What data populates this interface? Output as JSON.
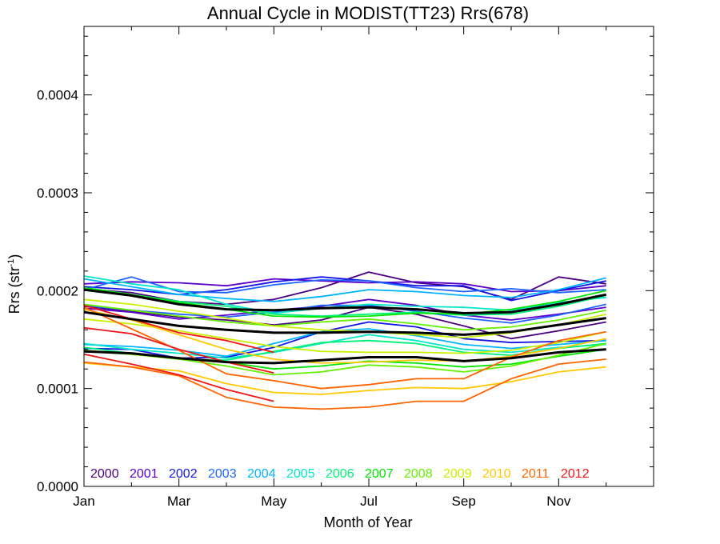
{
  "chart_data": {
    "type": "line",
    "title": "Annual Cycle in MODIST(TT23) Rrs(678)",
    "xlabel": "Month of Year",
    "ylabel_main": "Rrs (str",
    "ylabel_sup": "-1",
    "ylabel_close": ")",
    "xlim": [
      1,
      13
    ],
    "ylim": [
      0,
      0.00047
    ],
    "x_ticks": [
      {
        "value": 1,
        "label": "Jan"
      },
      {
        "value": 3,
        "label": "Mar"
      },
      {
        "value": 5,
        "label": "May"
      },
      {
        "value": 7,
        "label": "Jul"
      },
      {
        "value": 9,
        "label": "Sep"
      },
      {
        "value": 11,
        "label": "Nov"
      }
    ],
    "y_ticks": [
      {
        "value": 0,
        "label": "0.0000"
      },
      {
        "value": 0.0001,
        "label": "0.0001"
      },
      {
        "value": 0.0002,
        "label": "0.0002"
      },
      {
        "value": 0.0003,
        "label": "0.0003"
      },
      {
        "value": 0.0004,
        "label": "0.0004"
      }
    ],
    "months": [
      1,
      2,
      3,
      4,
      5,
      6,
      7,
      8,
      9,
      10,
      11,
      12
    ],
    "legend": [
      {
        "label": "2000",
        "color": "#4b0082"
      },
      {
        "label": "2001",
        "color": "#5a00c8"
      },
      {
        "label": "2002",
        "color": "#1414e6"
      },
      {
        "label": "2003",
        "color": "#1e64ff"
      },
      {
        "label": "2004",
        "color": "#00b4ff"
      },
      {
        "label": "2005",
        "color": "#00e6c8"
      },
      {
        "label": "2006",
        "color": "#00f078"
      },
      {
        "label": "2007",
        "color": "#00e600"
      },
      {
        "label": "2008",
        "color": "#64f000"
      },
      {
        "label": "2009",
        "color": "#c8f000"
      },
      {
        "label": "2010",
        "color": "#ffc800"
      },
      {
        "label": "2011",
        "color": "#ff6400"
      },
      {
        "label": "2012",
        "color": "#f01414"
      }
    ],
    "series": [
      {
        "year": "2000",
        "color": "#4b0082",
        "values": [
          0.000202,
          0.000198,
          0.000189,
          0.000186,
          0.000191,
          0.000203,
          0.000219,
          0.000208,
          0.000204,
          0.000191,
          0.000214,
          0.000207
        ]
      },
      {
        "year": "2000",
        "color": "#4b0082",
        "values": [
          0.000184,
          0.000179,
          0.000173,
          0.00017,
          0.000165,
          0.00017,
          0.000183,
          0.000176,
          0.000164,
          0.000151,
          0.000159,
          0.000168
        ]
      },
      {
        "year": "2001",
        "color": "#5a00c8",
        "values": [
          0.000207,
          0.000209,
          0.000208,
          0.000205,
          0.000212,
          0.00021,
          0.000208,
          0.000209,
          0.000207,
          0.000199,
          0.0002,
          0.000205
        ]
      },
      {
        "year": "2001",
        "color": "#5a00c8",
        "values": [
          0.000182,
          0.000178,
          0.000171,
          0.000175,
          0.00018,
          0.000184,
          0.000191,
          0.000185,
          0.000175,
          0.00017,
          0.000176,
          0.000183
        ]
      },
      {
        "year": "2002",
        "color": "#1414e6",
        "values": [
          0.000204,
          0.000201,
          0.000196,
          0.000201,
          0.000209,
          0.000214,
          0.00021,
          0.000205,
          0.000205,
          0.00019,
          0.0002,
          0.00021
        ]
      },
      {
        "year": "2002",
        "color": "#1414e6",
        "values": [
          0.000141,
          0.00014,
          0.000131,
          0.000132,
          0.000142,
          0.000158,
          0.000168,
          0.000163,
          0.000151,
          0.000147,
          0.000148,
          0.000149
        ]
      },
      {
        "year": "2003",
        "color": "#1e64ff",
        "values": [
          0.000201,
          0.000214,
          0.000199,
          0.000198,
          0.000206,
          0.000211,
          0.00021,
          0.000203,
          0.000199,
          0.000202,
          0.000198,
          0.000201
        ]
      },
      {
        "year": "2003",
        "color": "#1e64ff",
        "values": [
          0.000185,
          0.00018,
          0.000176,
          0.000173,
          0.000178,
          0.000185,
          0.000185,
          0.000179,
          0.000172,
          0.000167,
          0.000175,
          0.000186
        ]
      },
      {
        "year": "2004",
        "color": "#00b4ff",
        "values": [
          0.000212,
          0.000204,
          0.000196,
          0.000192,
          0.000189,
          0.000194,
          0.000201,
          0.000199,
          0.000195,
          0.000193,
          0.000201,
          0.000213
        ]
      },
      {
        "year": "2004",
        "color": "#00b4ff",
        "values": [
          0.000145,
          0.000143,
          0.000139,
          0.000133,
          0.000146,
          0.000158,
          0.000161,
          0.000154,
          0.000145,
          0.000141,
          0.000145,
          0.000149
        ]
      },
      {
        "year": "2005",
        "color": "#00e6c8",
        "values": [
          0.000215,
          0.000207,
          0.000201,
          0.000186,
          0.000177,
          0.000182,
          0.000186,
          0.000184,
          0.000183,
          0.00018,
          0.000188,
          0.000193
        ]
      },
      {
        "year": "2005",
        "color": "#00e6c8",
        "values": [
          0.000146,
          0.00014,
          0.000136,
          0.000131,
          0.000137,
          0.000146,
          0.000155,
          0.000149,
          0.00014,
          0.000137,
          0.000142,
          0.000145
        ]
      },
      {
        "year": "2006",
        "color": "#00f078",
        "values": [
          0.000203,
          0.000196,
          0.000189,
          0.000184,
          0.000176,
          0.000174,
          0.000176,
          0.000178,
          0.000175,
          0.000176,
          0.000184,
          0.000195
        ]
      },
      {
        "year": "2006",
        "color": "#00f078",
        "values": [
          0.000142,
          0.000136,
          0.00013,
          0.000129,
          0.000138,
          0.000147,
          0.000149,
          0.000146,
          0.000137,
          0.000134,
          0.000141,
          0.000146
        ]
      },
      {
        "year": "2007",
        "color": "#00e600",
        "values": [
          0.000203,
          0.000196,
          0.000188,
          0.000181,
          0.000174,
          0.000173,
          0.000174,
          0.000177,
          0.000176,
          0.000181,
          0.000189,
          0.0002
        ]
      },
      {
        "year": "2007",
        "color": "#00e600",
        "values": [
          0.000139,
          0.000135,
          0.000131,
          0.000127,
          0.00012,
          0.000123,
          0.000128,
          0.000126,
          0.000122,
          0.000125,
          0.000133,
          0.00014
        ]
      },
      {
        "year": "2008",
        "color": "#64f000",
        "values": [
          0.000186,
          0.00018,
          0.000174,
          0.000168,
          0.000164,
          0.000168,
          0.000171,
          0.000166,
          0.00016,
          0.000163,
          0.00017,
          0.00018
        ]
      },
      {
        "year": "2008",
        "color": "#64f000",
        "values": [
          0.000138,
          0.000135,
          0.00013,
          0.000123,
          0.000114,
          0.000117,
          0.000124,
          0.000122,
          0.000117,
          0.000123,
          0.000134,
          0.000146
        ]
      },
      {
        "year": "2009",
        "color": "#c8f000",
        "values": [
          0.000191,
          0.000186,
          0.000179,
          0.000172,
          0.000164,
          0.00016,
          0.000158,
          0.000155,
          0.000152,
          0.000157,
          0.000165,
          0.000176
        ]
      },
      {
        "year": "2009",
        "color": "#c8f000",
        "values": [
          0.000171,
          0.000166,
          0.000159,
          0.000151,
          0.000143,
          0.000138,
          0.000137,
          0.000137,
          0.000136,
          0.000139,
          0.000147,
          0.000158
        ]
      },
      {
        "year": "2010",
        "color": "#ffc800",
        "values": [
          0.000126,
          0.000122,
          0.000118,
          0.000105,
          9.6e-05,
          9.4e-05,
          9.8e-05,
          0.000101,
          0.0001,
          0.000107,
          0.000117,
          0.000122
        ]
      },
      {
        "year": "2010",
        "color": "#ffc800",
        "values": [
          0.000181,
          0.00017,
          0.000155,
          0.00014,
          0.00013,
          0.000126,
          0.000127,
          0.000129,
          0.000128,
          0.000133,
          0.000141,
          0.000151
        ]
      },
      {
        "year": "2011",
        "color": "#ff6400",
        "values": [
          0.000127,
          0.000122,
          0.000113,
          9.1e-05,
          8.1e-05,
          7.9e-05,
          8.1e-05,
          8.7e-05,
          8.7e-05,
          0.00011,
          0.000125,
          0.00013
        ]
      },
      {
        "year": "2011",
        "color": "#ff6400",
        "values": [
          0.000183,
          0.000161,
          0.000139,
          0.000115,
          0.000108,
          0.0001,
          0.000104,
          0.00011,
          0.00011,
          0.000132,
          0.000149,
          0.000158
        ]
      },
      {
        "year": "2012",
        "color": "#f01414",
        "values": [
          0.000135,
          0.000125,
          0.000114,
          9.9e-05,
          8.7e-05
        ]
      },
      {
        "year": "2012",
        "color": "#f01414",
        "values": [
          0.000162,
          0.000156,
          0.00014,
          0.000127,
          0.000116
        ]
      },
      {
        "year": "2012",
        "color": "#f01414",
        "values": [
          0.000185,
          0.000171,
          0.000157,
          0.000149,
          0.000137
        ]
      },
      {
        "year": "mean",
        "color": "#000000",
        "values": [
          0.000201,
          0.000195,
          0.000186,
          0.000181,
          0.00018,
          0.000182,
          0.000183,
          0.000181,
          0.000177,
          0.000178,
          0.000186,
          0.000196
        ]
      },
      {
        "year": "mean",
        "color": "#000000",
        "values": [
          0.000178,
          0.000171,
          0.000164,
          0.00016,
          0.000157,
          0.000157,
          0.000158,
          0.000157,
          0.000155,
          0.000158,
          0.000165,
          0.000172
        ]
      },
      {
        "year": "mean",
        "color": "#000000",
        "values": [
          0.000138,
          0.000136,
          0.000131,
          0.000127,
          0.000126,
          0.000129,
          0.000132,
          0.000132,
          0.000128,
          0.000131,
          0.000137,
          0.00014
        ]
      }
    ]
  }
}
